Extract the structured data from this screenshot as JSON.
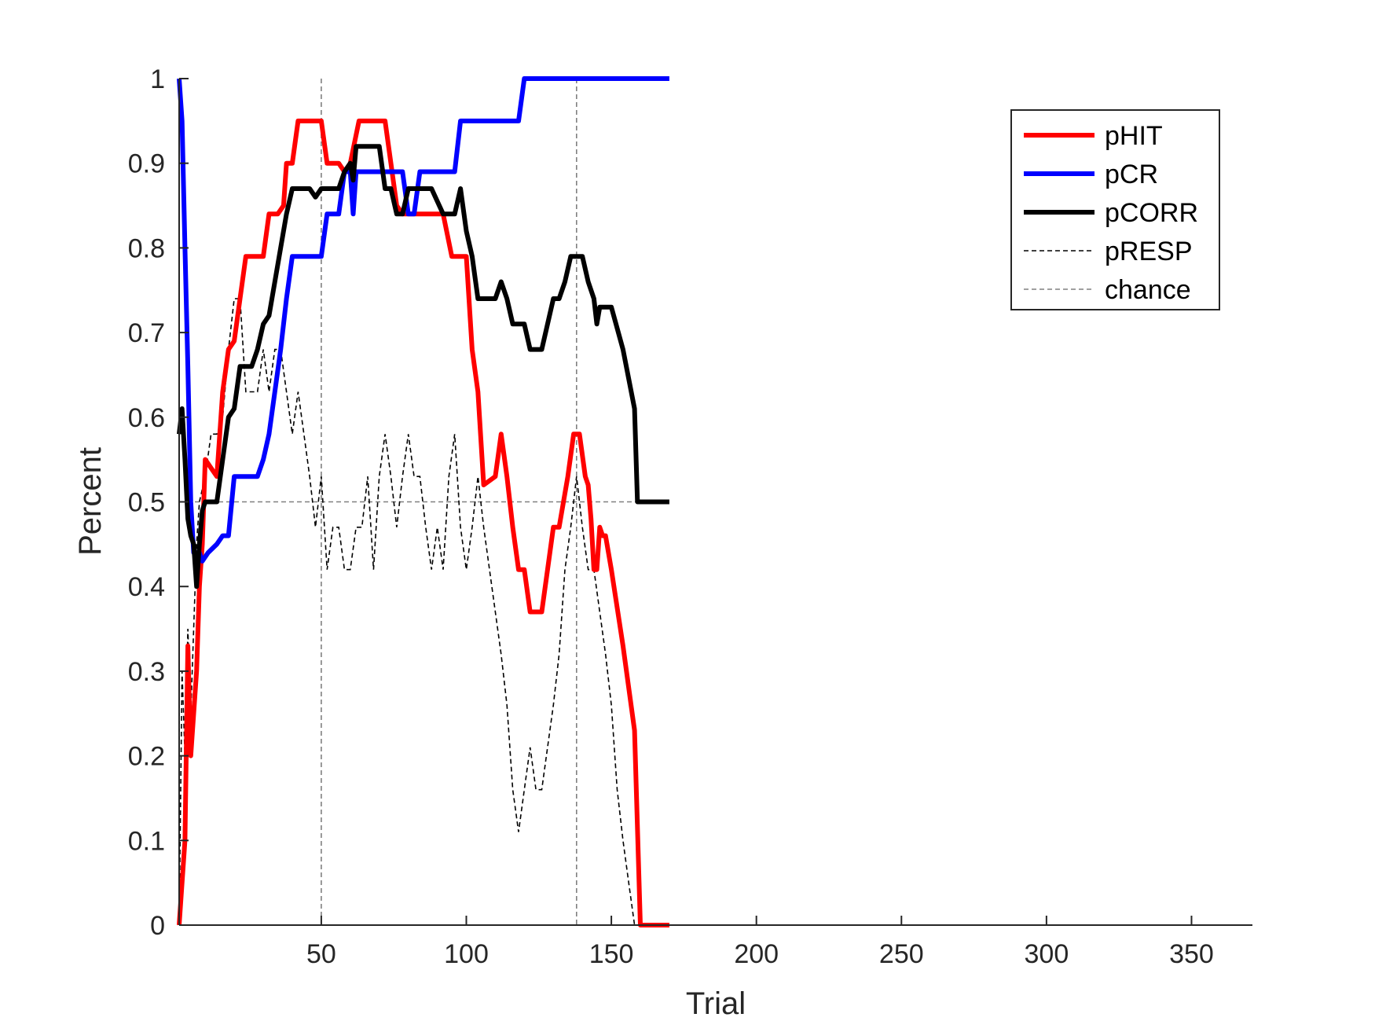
{
  "chart_data": {
    "type": "line",
    "xlabel": "Trial",
    "ylabel": "Percent",
    "xlim": [
      1,
      371
    ],
    "ylim": [
      0,
      1
    ],
    "xticks": [
      50,
      100,
      150,
      200,
      250,
      300,
      350
    ],
    "xtick_labels": [
      "50",
      "100",
      "150",
      "200",
      "250",
      "300",
      "350"
    ],
    "yticks": [
      0,
      0.1,
      0.2,
      0.3,
      0.4,
      0.5,
      0.6,
      0.7,
      0.8,
      0.9,
      1
    ],
    "ytick_labels": [
      "0",
      "0.1",
      "0.2",
      "0.3",
      "0.4",
      "0.5",
      "0.6",
      "0.7",
      "0.8",
      "0.9",
      "1"
    ],
    "grid": false,
    "legend_position": "top-right",
    "reference_lines": {
      "horizontal": [
        0.5
      ],
      "vertical": [
        50,
        138
      ],
      "color": "#808080"
    },
    "series": [
      {
        "name": "pHIT",
        "color": "#ff0000",
        "style": "solid-thick",
        "x": [
          1,
          3,
          4,
          5,
          6,
          7,
          8,
          9,
          10,
          12,
          14,
          16,
          18,
          20,
          22,
          24,
          27,
          30,
          32,
          35,
          37,
          38,
          40,
          42,
          44,
          46,
          48,
          50,
          52,
          54,
          56,
          58,
          60,
          63,
          66,
          70,
          72,
          74,
          76,
          78,
          80,
          84,
          88,
          92,
          95,
          100,
          102,
          104,
          106,
          110,
          112,
          114,
          116,
          118,
          120,
          122,
          124,
          126,
          128,
          130,
          132,
          135,
          137,
          139,
          141,
          142,
          143,
          144,
          145,
          146,
          147,
          148,
          150,
          154,
          158,
          160,
          162,
          166,
          170
        ],
        "y": [
          0,
          0.1,
          0.33,
          0.2,
          0.25,
          0.3,
          0.4,
          0.45,
          0.55,
          0.54,
          0.53,
          0.63,
          0.68,
          0.69,
          0.74,
          0.79,
          0.79,
          0.79,
          0.84,
          0.84,
          0.85,
          0.9,
          0.9,
          0.95,
          0.95,
          0.95,
          0.95,
          0.95,
          0.9,
          0.9,
          0.9,
          0.89,
          0.9,
          0.95,
          0.95,
          0.95,
          0.95,
          0.9,
          0.85,
          0.84,
          0.84,
          0.84,
          0.84,
          0.84,
          0.79,
          0.79,
          0.68,
          0.63,
          0.52,
          0.53,
          0.58,
          0.53,
          0.47,
          0.42,
          0.42,
          0.37,
          0.37,
          0.37,
          0.42,
          0.47,
          0.47,
          0.53,
          0.58,
          0.58,
          0.53,
          0.52,
          0.48,
          0.42,
          0.42,
          0.47,
          0.46,
          0.46,
          0.42,
          0.33,
          0.23,
          0,
          0,
          0,
          0
        ]
      },
      {
        "name": "pCR",
        "color": "#0000ff",
        "style": "solid-thick",
        "x": [
          1,
          2,
          3,
          4,
          5,
          6,
          7,
          8,
          9,
          11,
          14,
          16,
          18,
          20,
          22,
          24,
          26,
          28,
          30,
          32,
          34,
          36,
          38,
          40,
          42,
          44,
          48,
          50,
          52,
          54,
          56,
          58,
          60,
          61,
          62,
          64,
          66,
          70,
          74,
          78,
          80,
          82,
          84,
          88,
          92,
          96,
          98,
          100,
          104,
          108,
          112,
          116,
          118,
          120,
          124,
          130,
          136,
          142,
          150,
          160,
          170
        ],
        "y": [
          1,
          0.95,
          0.8,
          0.66,
          0.5,
          0.44,
          0.44,
          0.44,
          0.43,
          0.44,
          0.45,
          0.46,
          0.46,
          0.53,
          0.53,
          0.53,
          0.53,
          0.53,
          0.55,
          0.58,
          0.63,
          0.68,
          0.74,
          0.79,
          0.79,
          0.79,
          0.79,
          0.79,
          0.84,
          0.84,
          0.84,
          0.89,
          0.89,
          0.84,
          0.89,
          0.89,
          0.89,
          0.89,
          0.89,
          0.89,
          0.84,
          0.84,
          0.89,
          0.89,
          0.89,
          0.89,
          0.95,
          0.95,
          0.95,
          0.95,
          0.95,
          0.95,
          0.95,
          1,
          1,
          1,
          1,
          1,
          1,
          1,
          1
        ]
      },
      {
        "name": "pCORR",
        "color": "#000000",
        "style": "solid-thick",
        "x": [
          1,
          2,
          3,
          4,
          5,
          6,
          7,
          8,
          9,
          10,
          12,
          14,
          16,
          18,
          20,
          22,
          24,
          26,
          28,
          30,
          32,
          34,
          36,
          38,
          40,
          42,
          44,
          46,
          48,
          50,
          52,
          54,
          56,
          58,
          60,
          61,
          62,
          64,
          66,
          68,
          70,
          72,
          74,
          76,
          78,
          80,
          82,
          84,
          88,
          92,
          94,
          96,
          98,
          100,
          102,
          104,
          106,
          110,
          112,
          114,
          116,
          118,
          120,
          122,
          124,
          126,
          128,
          130,
          132,
          134,
          136,
          138,
          140,
          142,
          144,
          145,
          146,
          150,
          154,
          158,
          159,
          162,
          166,
          170
        ],
        "y": [
          0.58,
          0.61,
          0.55,
          0.48,
          0.46,
          0.45,
          0.4,
          0.45,
          0.49,
          0.5,
          0.5,
          0.5,
          0.55,
          0.6,
          0.61,
          0.66,
          0.66,
          0.66,
          0.68,
          0.71,
          0.72,
          0.76,
          0.8,
          0.84,
          0.87,
          0.87,
          0.87,
          0.87,
          0.86,
          0.87,
          0.87,
          0.87,
          0.87,
          0.89,
          0.9,
          0.88,
          0.92,
          0.92,
          0.92,
          0.92,
          0.92,
          0.87,
          0.87,
          0.84,
          0.84,
          0.87,
          0.87,
          0.87,
          0.87,
          0.84,
          0.84,
          0.84,
          0.87,
          0.82,
          0.79,
          0.74,
          0.74,
          0.74,
          0.76,
          0.74,
          0.71,
          0.71,
          0.71,
          0.68,
          0.68,
          0.68,
          0.71,
          0.74,
          0.74,
          0.76,
          0.79,
          0.79,
          0.79,
          0.76,
          0.74,
          0.71,
          0.73,
          0.73,
          0.68,
          0.61,
          0.5,
          0.5,
          0.5,
          0.5
        ]
      },
      {
        "name": "pRESP",
        "color": "#000000",
        "style": "dashed-thin",
        "x": [
          1,
          2,
          3,
          4,
          5,
          6,
          7,
          8,
          10,
          12,
          14,
          16,
          18,
          20,
          22,
          24,
          26,
          28,
          30,
          32,
          34,
          36,
          38,
          40,
          42,
          44,
          46,
          48,
          50,
          52,
          54,
          56,
          58,
          60,
          62,
          64,
          66,
          68,
          70,
          72,
          74,
          76,
          78,
          80,
          82,
          84,
          86,
          88,
          90,
          92,
          94,
          96,
          98,
          100,
          102,
          104,
          106,
          108,
          110,
          112,
          114,
          116,
          118,
          120,
          122,
          124,
          126,
          128,
          130,
          132,
          134,
          136,
          138,
          140,
          142,
          144,
          146,
          148,
          150,
          152,
          154,
          156,
          158,
          160,
          166
        ],
        "y": [
          0,
          0.3,
          0.2,
          0.35,
          0.25,
          0.35,
          0.45,
          0.5,
          0.53,
          0.58,
          0.58,
          0.6,
          0.68,
          0.74,
          0.74,
          0.63,
          0.63,
          0.63,
          0.68,
          0.63,
          0.68,
          0.68,
          0.63,
          0.58,
          0.63,
          0.58,
          0.53,
          0.47,
          0.53,
          0.42,
          0.47,
          0.47,
          0.42,
          0.42,
          0.47,
          0.47,
          0.53,
          0.42,
          0.53,
          0.58,
          0.53,
          0.47,
          0.53,
          0.58,
          0.53,
          0.53,
          0.47,
          0.42,
          0.47,
          0.42,
          0.53,
          0.58,
          0.47,
          0.42,
          0.47,
          0.53,
          0.47,
          0.42,
          0.37,
          0.32,
          0.26,
          0.16,
          0.11,
          0.16,
          0.21,
          0.16,
          0.16,
          0.21,
          0.26,
          0.32,
          0.42,
          0.47,
          0.53,
          0.47,
          0.42,
          0.42,
          0.37,
          0.32,
          0.26,
          0.16,
          0.1,
          0.05,
          0,
          0,
          0
        ]
      }
    ],
    "legend": [
      {
        "label": "pHIT",
        "color": "#ff0000",
        "style": "solid-thick"
      },
      {
        "label": "pCR",
        "color": "#0000ff",
        "style": "solid-thick"
      },
      {
        "label": "pCORR",
        "color": "#000000",
        "style": "solid-thick"
      },
      {
        "label": "pRESP",
        "color": "#000000",
        "style": "dashed-thin"
      },
      {
        "label": "chance",
        "color": "#808080",
        "style": "dashed-thin"
      }
    ]
  }
}
